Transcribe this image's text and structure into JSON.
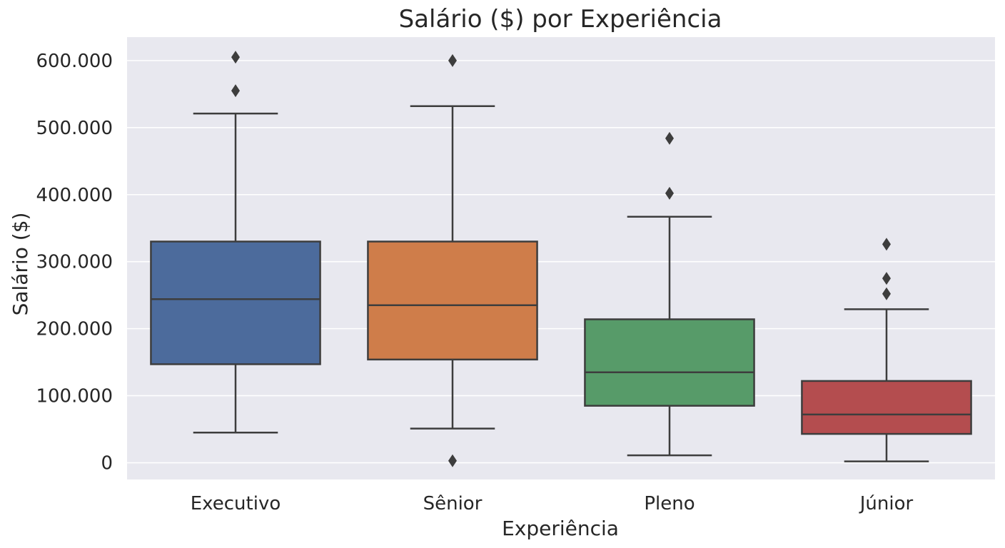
{
  "chart_data": {
    "type": "boxplot",
    "title": "Salário ($) por Experiência",
    "xlabel": "Experiência",
    "ylabel": "Salário ($)",
    "ylim": [
      -25000,
      635000
    ],
    "yticks": [
      0,
      100000,
      200000,
      300000,
      400000,
      500000,
      600000
    ],
    "ytick_labels": [
      "0",
      "100.000",
      "200.000",
      "300.000",
      "400.000",
      "500.000",
      "600.000"
    ],
    "grid": true,
    "categories": [
      "Executivo",
      "Sênior",
      "Pleno",
      "Júnior"
    ],
    "boxes": [
      {
        "category": "Executivo",
        "color": "#4c6b9c",
        "whisker_low": 45000,
        "q1": 147000,
        "median": 244000,
        "q3": 330000,
        "whisker_high": 521000,
        "outliers": [
          555000,
          605000
        ]
      },
      {
        "category": "Sênior",
        "color": "#cf7d4a",
        "whisker_low": 51000,
        "q1": 154000,
        "median": 235000,
        "q3": 330000,
        "whisker_high": 532000,
        "outliers": [
          3000,
          600000
        ]
      },
      {
        "category": "Pleno",
        "color": "#579b69",
        "whisker_low": 11000,
        "q1": 85000,
        "median": 135000,
        "q3": 214000,
        "whisker_high": 367000,
        "outliers": [
          402000,
          484000
        ]
      },
      {
        "category": "Júnior",
        "color": "#b44d4f",
        "whisker_low": 2000,
        "q1": 43000,
        "median": 72000,
        "q3": 122000,
        "whisker_high": 229000,
        "outliers": [
          252000,
          275000,
          326000
        ]
      }
    ]
  }
}
